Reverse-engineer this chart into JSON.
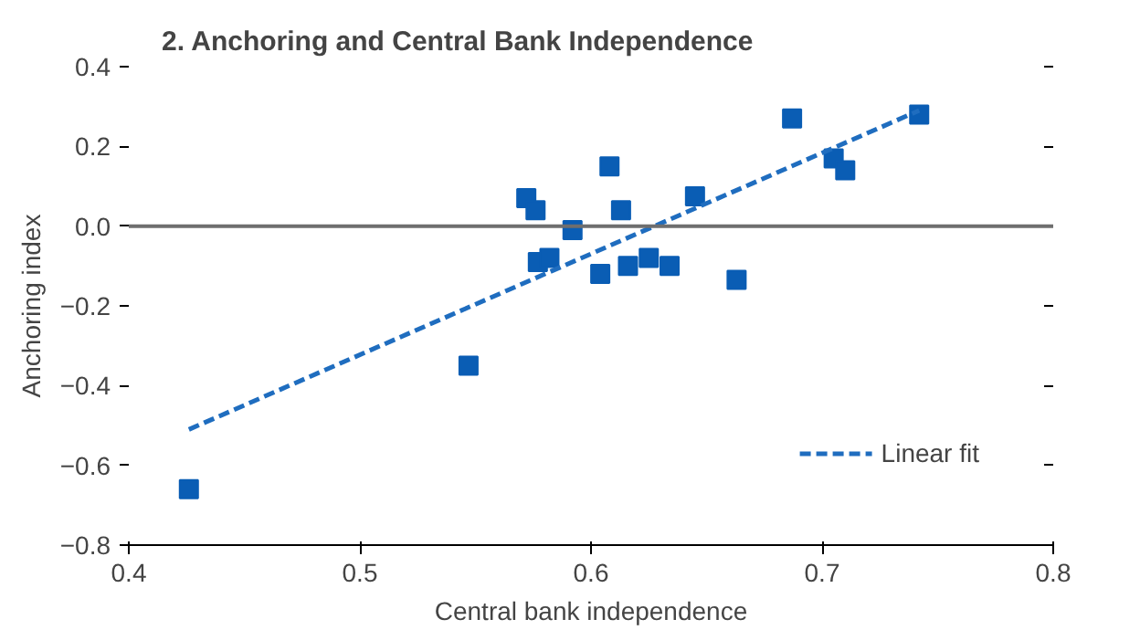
{
  "chart_data": {
    "type": "scatter",
    "title": "2. Anchoring and Central Bank Independence",
    "xlabel": "Central bank independence",
    "ylabel": "Anchoring index",
    "grid": false,
    "legend": "bottom right",
    "xlim": [
      0.4,
      0.8
    ],
    "xticks": [
      0.4,
      0.5,
      0.6,
      0.7,
      0.8
    ],
    "ylim": [
      -0.8,
      0.4
    ],
    "yticks": [
      {
        "value": -0.8,
        "label": "−0.8"
      },
      {
        "value": -0.6,
        "label": "−0.6"
      },
      {
        "value": -0.4,
        "label": "−0.4"
      },
      {
        "value": -0.2,
        "label": "−0.2"
      },
      {
        "value": 0,
        "label": "0.0"
      },
      0.2,
      0.4
    ],
    "ref_lines": [
      {
        "axis": "y",
        "value": 0,
        "label": null,
        "color": "#6e6e6e"
      }
    ],
    "series": [
      {
        "color": "#0a5db4",
        "marker": "square",
        "x": [
          0.426,
          0.547,
          0.572,
          0.576,
          0.577,
          0.582,
          0.592,
          0.604,
          0.608,
          0.613,
          0.616,
          0.625,
          0.634,
          0.645,
          0.663,
          0.687,
          0.705,
          0.71,
          0.742
        ],
        "values": [
          -0.66,
          -0.35,
          0.07,
          0.04,
          -0.09,
          -0.08,
          -0.01,
          -0.12,
          0.15,
          0.04,
          -0.1,
          -0.08,
          -0.1,
          0.075,
          -0.135,
          0.27,
          0.17,
          0.14,
          0.28
        ]
      },
      {
        "type": "line",
        "name": "Linear fit",
        "color": "#1f6dbf",
        "line_style": "dashed",
        "x": [
          0.426,
          0.742
        ],
        "values": [
          -0.51,
          0.29
        ]
      }
    ]
  }
}
